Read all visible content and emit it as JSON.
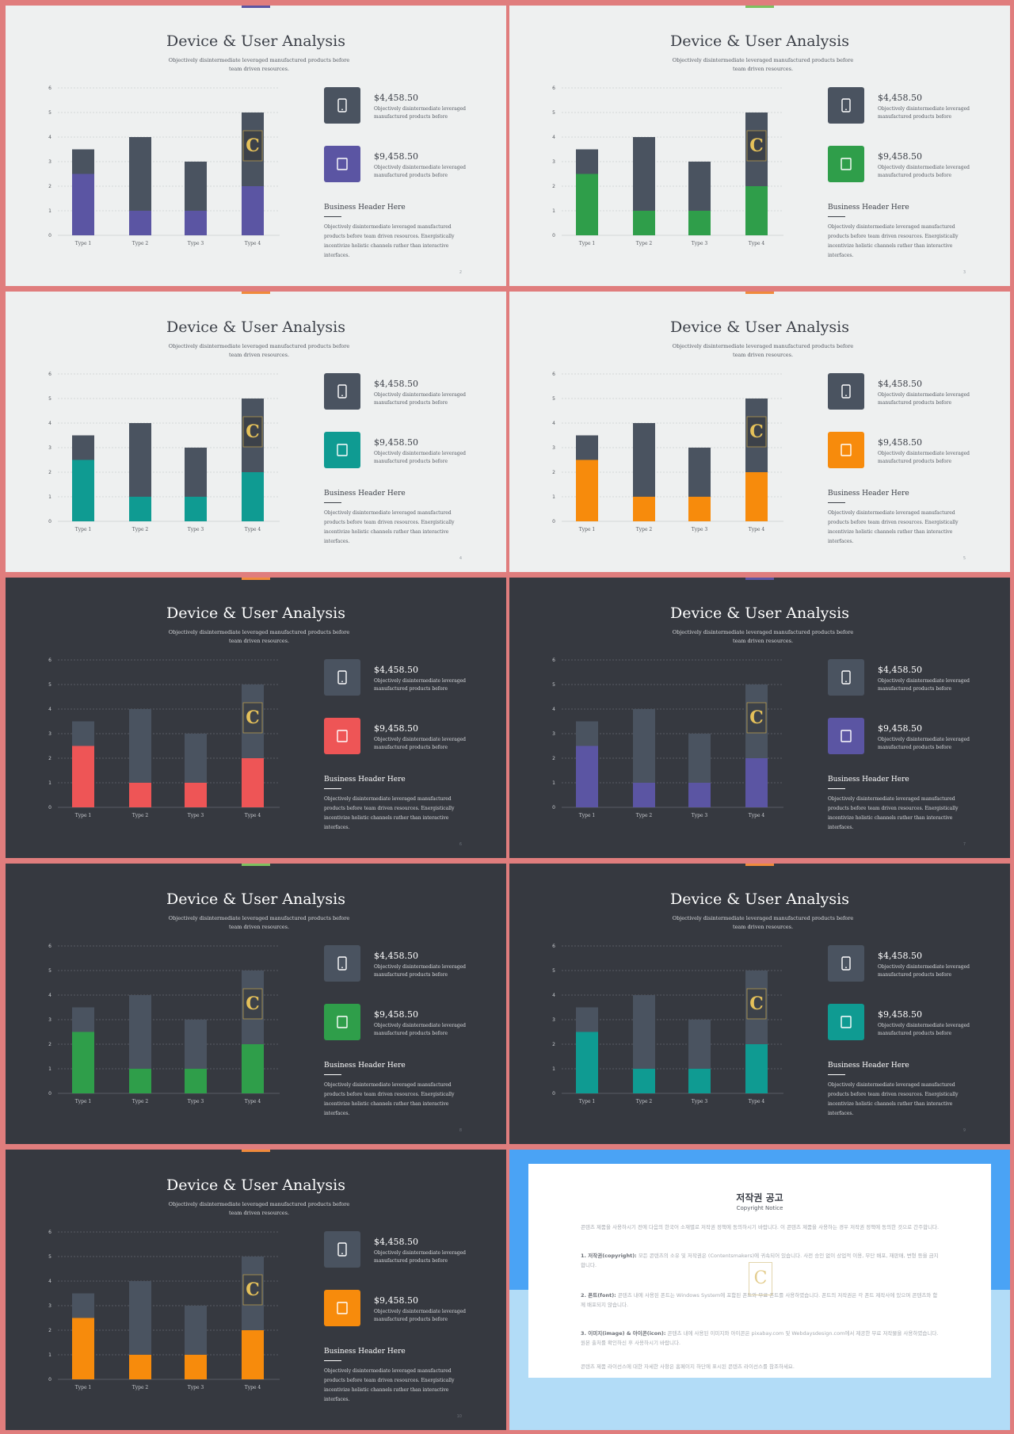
{
  "common": {
    "title": "Device & User Analysis",
    "subtitle": "Objectively disintermediate leveraged manufactured products before team driven resources.",
    "stat1_value": "$4,458.50",
    "stat1_desc": "Objectively disintermediate leveraged manufactured products before",
    "stat2_value": "$9,458.50",
    "stat2_desc": "Objectively disintermediate leveraged manufactured products before",
    "business_header": "Business Header Here",
    "business_body": "Objectively disintermediate leveraged manufactured products before team driven resources. Energistically incentivize holistic channels rather than interactive interfaces.",
    "watermark_icon": "contents-logo-icon",
    "stat1_icon": "phone-icon",
    "stat2_icon": "tablet-icon"
  },
  "chart_data": [
    {
      "type": "bar",
      "slide": 1,
      "categories": [
        "Type 1",
        "Type 2",
        "Type 3",
        "Type 4"
      ],
      "ylim": [
        0,
        6
      ],
      "yticks": [
        "0",
        "1",
        "2",
        "3",
        "4",
        "5",
        "6"
      ],
      "series": [
        {
          "values": [
            2.5,
            1,
            1,
            2
          ]
        },
        {
          "values": [
            1,
            3,
            2,
            3
          ]
        }
      ],
      "colors": [
        "#5b55a3",
        "#4a5360"
      ]
    },
    {
      "type": "bar",
      "slide": 2,
      "categories": [
        "Type 1",
        "Type 2",
        "Type 3",
        "Type 4"
      ],
      "ylim": [
        0,
        6
      ],
      "yticks": [
        "0",
        "1",
        "2",
        "3",
        "4",
        "5",
        "6"
      ],
      "series": [
        {
          "values": [
            2.5,
            1,
            1,
            2
          ]
        },
        {
          "values": [
            1,
            3,
            2,
            3
          ]
        }
      ],
      "colors": [
        "#2f9e4a",
        "#4a5360"
      ]
    },
    {
      "type": "bar",
      "slide": 3,
      "categories": [
        "Type 1",
        "Type 2",
        "Type 3",
        "Type 4"
      ],
      "ylim": [
        0,
        6
      ],
      "yticks": [
        "0",
        "1",
        "2",
        "3",
        "4",
        "5",
        "6"
      ],
      "series": [
        {
          "values": [
            2.5,
            1,
            1,
            2
          ]
        },
        {
          "values": [
            1,
            3,
            2,
            3
          ]
        }
      ],
      "colors": [
        "#0f9b92",
        "#4a5360"
      ]
    },
    {
      "type": "bar",
      "slide": 4,
      "categories": [
        "Type 1",
        "Type 2",
        "Type 3",
        "Type 4"
      ],
      "ylim": [
        0,
        6
      ],
      "yticks": [
        "0",
        "1",
        "2",
        "3",
        "4",
        "5",
        "6"
      ],
      "series": [
        {
          "values": [
            2.5,
            1,
            1,
            2
          ]
        },
        {
          "values": [
            1,
            3,
            2,
            3
          ]
        }
      ],
      "colors": [
        "#f78b0c",
        "#4a5360"
      ]
    },
    {
      "type": "bar",
      "slide": 5,
      "categories": [
        "Type 1",
        "Type 2",
        "Type 3",
        "Type 4"
      ],
      "ylim": [
        0,
        6
      ],
      "yticks": [
        "0",
        "1",
        "2",
        "3",
        "4",
        "5",
        "6"
      ],
      "series": [
        {
          "values": [
            2.5,
            1,
            1,
            2
          ]
        },
        {
          "values": [
            1,
            3,
            2,
            3
          ]
        }
      ],
      "colors": [
        "#ee5556",
        "#4a5360"
      ]
    },
    {
      "type": "bar",
      "slide": 6,
      "categories": [
        "Type 1",
        "Type 2",
        "Type 3",
        "Type 4"
      ],
      "ylim": [
        0,
        6
      ],
      "yticks": [
        "0",
        "1",
        "2",
        "3",
        "4",
        "5",
        "6"
      ],
      "series": [
        {
          "values": [
            2.5,
            1,
            1,
            2
          ]
        },
        {
          "values": [
            1,
            3,
            2,
            3
          ]
        }
      ],
      "colors": [
        "#5b55a3",
        "#4a5360"
      ]
    },
    {
      "type": "bar",
      "slide": 7,
      "categories": [
        "Type 1",
        "Type 2",
        "Type 3",
        "Type 4"
      ],
      "ylim": [
        0,
        6
      ],
      "yticks": [
        "0",
        "1",
        "2",
        "3",
        "4",
        "5",
        "6"
      ],
      "series": [
        {
          "values": [
            2.5,
            1,
            1,
            2
          ]
        },
        {
          "values": [
            1,
            3,
            2,
            3
          ]
        }
      ],
      "colors": [
        "#2f9e4a",
        "#4a5360"
      ]
    },
    {
      "type": "bar",
      "slide": 8,
      "categories": [
        "Type 1",
        "Type 2",
        "Type 3",
        "Type 4"
      ],
      "ylim": [
        0,
        6
      ],
      "yticks": [
        "0",
        "1",
        "2",
        "3",
        "4",
        "5",
        "6"
      ],
      "series": [
        {
          "values": [
            2.5,
            1,
            1,
            2
          ]
        },
        {
          "values": [
            1,
            3,
            2,
            3
          ]
        }
      ],
      "colors": [
        "#0f9b92",
        "#4a5360"
      ]
    },
    {
      "type": "bar",
      "slide": 9,
      "categories": [
        "Type 1",
        "Type 2",
        "Type 3",
        "Type 4"
      ],
      "ylim": [
        0,
        6
      ],
      "yticks": [
        "0",
        "1",
        "2",
        "3",
        "4",
        "5",
        "6"
      ],
      "series": [
        {
          "values": [
            2.5,
            1,
            1,
            2
          ]
        },
        {
          "values": [
            1,
            3,
            2,
            3
          ]
        }
      ],
      "colors": [
        "#f78b0c",
        "#4a5360"
      ]
    }
  ],
  "slides": [
    {
      "theme": "light",
      "accent": "#5b55a3",
      "topbar": "#5b55a3",
      "page": "2"
    },
    {
      "theme": "light",
      "accent": "#2f9e4a",
      "topbar": "#7cc15f",
      "page": "3"
    },
    {
      "theme": "light",
      "accent": "#0f9b92",
      "topbar": "#f08a3c",
      "page": "4"
    },
    {
      "theme": "light",
      "accent": "#f78b0c",
      "topbar": "#f08a3c",
      "page": "5"
    },
    {
      "theme": "dark",
      "accent": "#ee5556",
      "topbar": "#f08a3c",
      "page": "6"
    },
    {
      "theme": "dark",
      "accent": "#5b55a3",
      "topbar": "#5b55a3",
      "page": "7"
    },
    {
      "theme": "dark",
      "accent": "#2f9e4a",
      "topbar": "#7cc15f",
      "page": "8"
    },
    {
      "theme": "dark",
      "accent": "#0f9b92",
      "topbar": "#f08a3c",
      "page": "9"
    },
    {
      "theme": "dark",
      "accent": "#f78b0c",
      "topbar": "#f08a3c",
      "page": "10"
    }
  ],
  "notice": {
    "title": "저작권 공고",
    "subtitle": "Copyright Notice",
    "colors": {
      "top": "#4aa3f5",
      "bottom": "#b2dcf7"
    },
    "paragraphs": [
      {
        "lead": "",
        "text": "콘텐츠 제품을 사용하시기 전에 다음의 한국어 소재별로 저작권 정책에 동의하시기 바랍니다. 이 콘텐츠 제품을 사용하는 경우 저작권 정책에 동의한 것으로 간주합니다."
      },
      {
        "lead": "1. 저작권(copyright):",
        "text": " 모든 콘텐츠의 소유 및 저작권은 (Contentsmakers)에 귀속되어 있습니다. 사전 승인 없이 상업적 이용, 무단 배포, 재판매, 변형 등을 금지합니다."
      },
      {
        "lead": "2. 폰트(font):",
        "text": " 콘텐츠 내에 사용된 폰트는 Windows System에 포함된 폰트와 무료 폰트를 사용하였습니다. 폰트의 저작권은 각 폰트 제작사에 있으며 콘텐츠와 함께 배포되지 않습니다."
      },
      {
        "lead": "3. 이미지(image) & 아이콘(icon):",
        "text": " 콘텐츠 내에 사용된 이미지와 아이콘은 pixabay.com 및 Webdaysdesign.com에서 제공한 무료 저작물을 사용하였습니다. 원본 출처를 확인하신 후 사용하시기 바랍니다."
      },
      {
        "lead": "",
        "text": "콘텐츠 제품 라이선스에 대한 자세한 사항은 홈페이지 하단에 표시된 콘텐츠 라이선스를 참조하세요."
      }
    ]
  }
}
